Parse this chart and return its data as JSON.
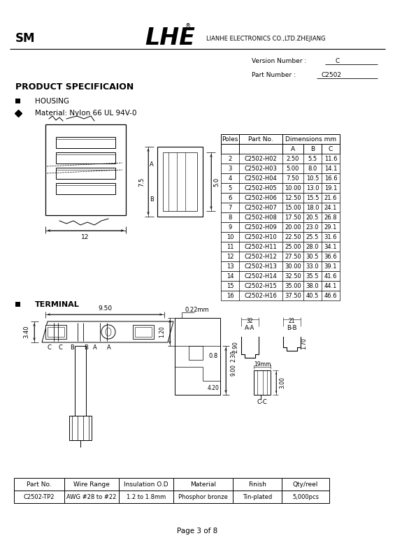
{
  "title_sm": "SM",
  "logo_text": "LHE",
  "logo_reg": "®",
  "company": "LIANHE ELECTRONICS CO.,LTD.ZHEJIANG",
  "version_label": "Version Number :",
  "version_value": "C",
  "part_label": "Part Number :",
  "part_value": "C2502",
  "section_title1": "PRODUCT SPECIFICAION",
  "bullet1": "HOUSING",
  "bullet2": "Material: Nylon 66 UL 94V-0",
  "table_data": [
    [
      "2",
      "C2502-H02",
      "2.50",
      "5.5",
      "11.6"
    ],
    [
      "3",
      "C2502-H03",
      "5.00",
      "8.0",
      "14.1"
    ],
    [
      "4",
      "C2502-H04",
      "7.50",
      "10.5",
      "16.6"
    ],
    [
      "5",
      "C2502-H05",
      "10.00",
      "13.0",
      "19.1"
    ],
    [
      "6",
      "C2502-H06",
      "12.50",
      "15.5",
      "21.6"
    ],
    [
      "7",
      "C2502-H07",
      "15.00",
      "18.0",
      "24.1"
    ],
    [
      "8",
      "C2502-H08",
      "17.50",
      "20.5",
      "26.8"
    ],
    [
      "9",
      "C2502-H09",
      "20.00",
      "23.0",
      "29.1"
    ],
    [
      "10",
      "C2502-H10",
      "22.50",
      "25.5",
      "31.6"
    ],
    [
      "11",
      "C2502-H11",
      "25.00",
      "28.0",
      "34.1"
    ],
    [
      "12",
      "C2502-H12",
      "27.50",
      "30.5",
      "36.6"
    ],
    [
      "13",
      "C2502-H13",
      "30.00",
      "33.0",
      "39.1"
    ],
    [
      "14",
      "C2502-H14",
      "32.50",
      "35.5",
      "41.6"
    ],
    [
      "15",
      "C2502-H15",
      "35.00",
      "38.0",
      "44.1"
    ],
    [
      "16",
      "C2502-H16",
      "37.50",
      "40.5",
      "46.6"
    ]
  ],
  "section_title2": "TERMINAL",
  "bottom_table_headers": [
    "Part No.",
    "Wire Range",
    "Insulation O.D",
    "Material",
    "Finish",
    "Qty/reel"
  ],
  "bottom_table_data": [
    "C2502-TP2",
    "AWG #28 to #22",
    "1.2 to 1.8mm",
    "Phosphor bronze",
    "Tin-plated",
    "5,000pcs"
  ],
  "page_text": "Page 3 of 8",
  "bg_color": "#ffffff"
}
